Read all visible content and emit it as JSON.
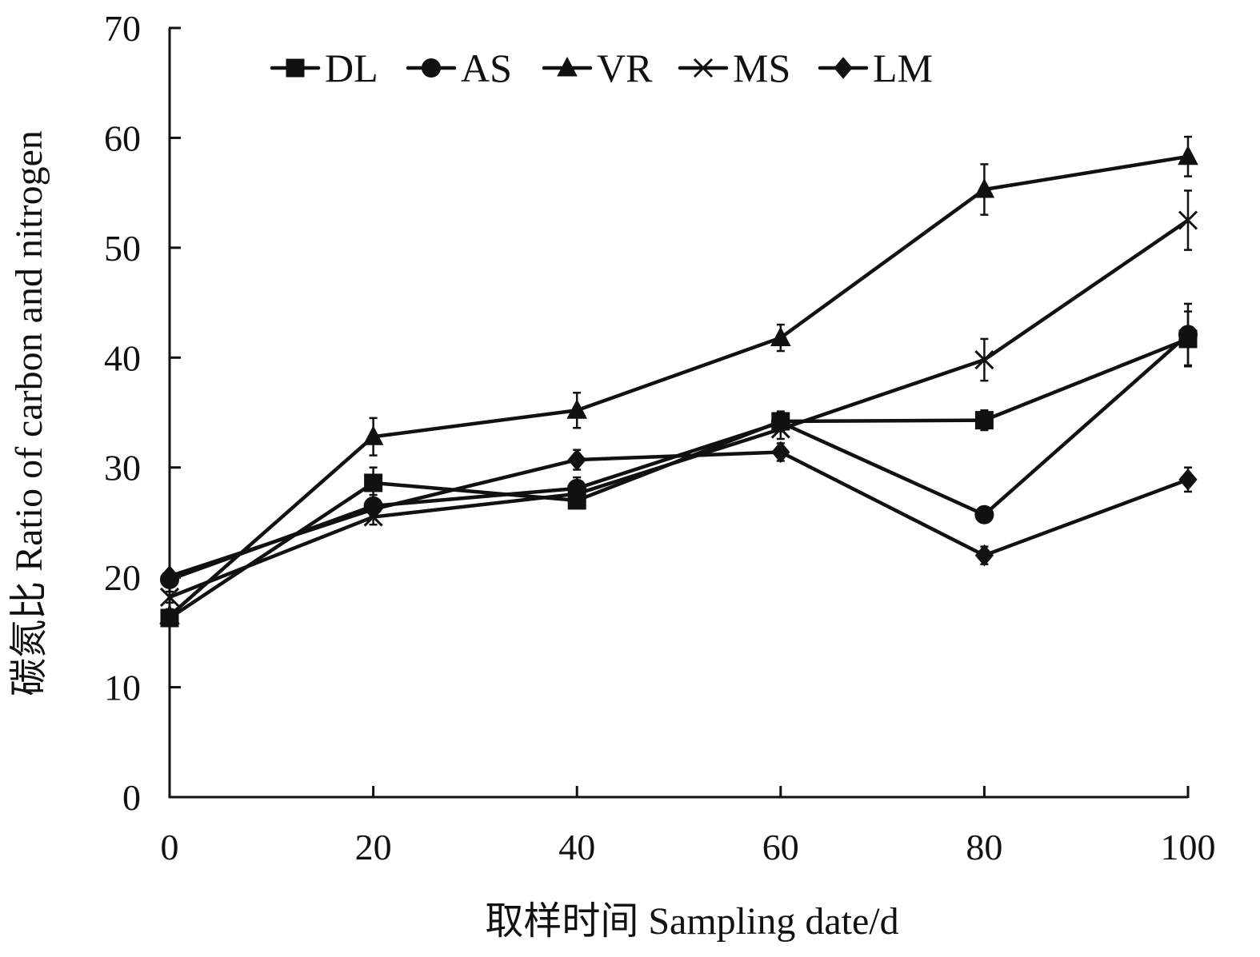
{
  "chart_data": {
    "type": "line",
    "title": "",
    "xlabel": "取样时间 Sampling date/d",
    "ylabel": "碳氮比 Ratio of carbon and nitrogen",
    "x": [
      0,
      20,
      40,
      60,
      80,
      100
    ],
    "xlim": [
      0,
      100
    ],
    "ylim": [
      0,
      70
    ],
    "x_ticks": [
      0,
      20,
      40,
      60,
      80,
      100
    ],
    "y_ticks": [
      0,
      10,
      20,
      30,
      40,
      50,
      60,
      70
    ],
    "x_tick_labels": [
      "0",
      "20",
      "40",
      "60",
      "80",
      "100"
    ],
    "y_tick_labels": [
      "0",
      "10",
      "20",
      "30",
      "40",
      "50",
      "60",
      "70"
    ],
    "grid": false,
    "legend": {
      "placement": "top",
      "entries": [
        "DL",
        "AS",
        "VR",
        "MS",
        "LM"
      ]
    },
    "series": [
      {
        "name": "DL",
        "marker": "square",
        "values": [
          16.3,
          28.6,
          27.0,
          34.2,
          34.3,
          41.7
        ],
        "errors": [
          0.6,
          1.4,
          0.6,
          0.9,
          0.9,
          2.5
        ]
      },
      {
        "name": "AS",
        "marker": "circle",
        "values": [
          19.8,
          26.5,
          28.1,
          34.1,
          25.7,
          42.1
        ],
        "errors": [
          0.5,
          1.0,
          1.0,
          0.8,
          0.7,
          2.8
        ]
      },
      {
        "name": "VR",
        "marker": "triangle",
        "values": [
          16.5,
          32.8,
          35.2,
          41.8,
          55.3,
          58.3
        ],
        "errors": [
          0.6,
          1.7,
          1.6,
          1.2,
          2.3,
          1.8
        ]
      },
      {
        "name": "MS",
        "marker": "x",
        "values": [
          18.2,
          25.5,
          27.6,
          33.5,
          39.8,
          52.5
        ],
        "errors": [
          0.5,
          0.7,
          0.8,
          0.9,
          1.9,
          2.7
        ]
      },
      {
        "name": "LM",
        "marker": "diamond",
        "values": [
          20.1,
          26.2,
          30.7,
          31.4,
          22.0,
          28.9
        ],
        "errors": [
          0.5,
          0.6,
          0.9,
          0.8,
          0.8,
          1.1
        ]
      }
    ]
  }
}
